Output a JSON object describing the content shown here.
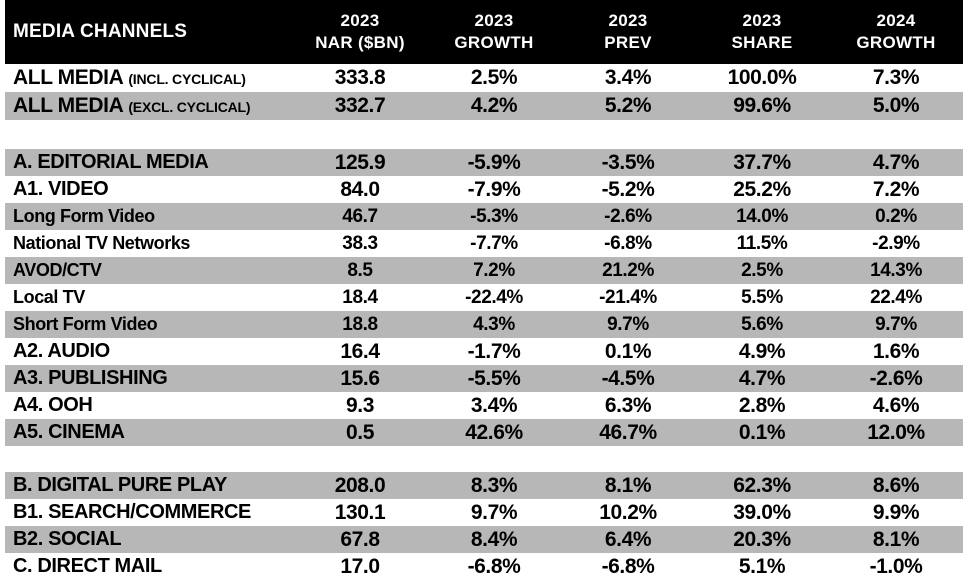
{
  "colors": {
    "header_bg": "#000000",
    "header_text": "#ffffff",
    "row_gray": "#b7b7b7",
    "row_white": "#ffffff",
    "text": "#000000"
  },
  "header": {
    "label": "MEDIA CHANNELS",
    "cols": [
      {
        "l1": "2023",
        "l2": "NAR ($BN)"
      },
      {
        "l1": "2023",
        "l2": "GROWTH"
      },
      {
        "l1": "2023",
        "l2": "PREV"
      },
      {
        "l1": "2023",
        "l2": "SHARE"
      },
      {
        "l1": "2024",
        "l2": "GROWTH"
      }
    ]
  },
  "chart_data": {
    "type": "table",
    "title": "MEDIA CHANNELS",
    "columns": [
      "MEDIA CHANNELS",
      "2023 NAR ($BN)",
      "2023 GROWTH",
      "2023 PREV",
      "2023 SHARE",
      "2024 GROWTH"
    ],
    "rows": [
      {
        "channel": "ALL MEDIA",
        "qualifier": "(INCL. CYCLICAL)",
        "nar_2023": "333.8",
        "growth_2023": "2.5%",
        "prev_2023": "3.4%",
        "share_2023": "100.0%",
        "growth_2024": "7.3%",
        "tier": "major",
        "shade": "white"
      },
      {
        "channel": "ALL MEDIA",
        "qualifier": "(EXCL. CYCLICAL)",
        "nar_2023": "332.7",
        "growth_2023": "4.2%",
        "prev_2023": "5.2%",
        "share_2023": "99.6%",
        "growth_2024": "5.0%",
        "tier": "major",
        "shade": "gray"
      },
      {
        "type": "spacer",
        "size": "lg"
      },
      {
        "channel": "A. EDITORIAL MEDIA",
        "nar_2023": "125.9",
        "growth_2023": "-5.9%",
        "prev_2023": "-3.5%",
        "share_2023": "37.7%",
        "growth_2024": "4.7%",
        "tier": "section",
        "shade": "gray"
      },
      {
        "channel": "A1. VIDEO",
        "nar_2023": "84.0",
        "growth_2023": "-7.9%",
        "prev_2023": "-5.2%",
        "share_2023": "25.2%",
        "growth_2024": "7.2%",
        "tier": "section",
        "shade": "white"
      },
      {
        "channel": "Long Form Video",
        "nar_2023": "46.7",
        "growth_2023": "-5.3%",
        "prev_2023": "-2.6%",
        "share_2023": "14.0%",
        "growth_2024": "0.2%",
        "tier": "sub",
        "shade": "gray"
      },
      {
        "channel": "National TV Networks",
        "nar_2023": "38.3",
        "growth_2023": "-7.7%",
        "prev_2023": "-6.8%",
        "share_2023": "11.5%",
        "growth_2024": "-2.9%",
        "tier": "sub",
        "shade": "white"
      },
      {
        "channel": "AVOD/CTV",
        "nar_2023": "8.5",
        "growth_2023": "7.2%",
        "prev_2023": "21.2%",
        "share_2023": "2.5%",
        "growth_2024": "14.3%",
        "tier": "sub",
        "shade": "gray"
      },
      {
        "channel": "Local TV",
        "nar_2023": "18.4",
        "growth_2023": "-22.4%",
        "prev_2023": "-21.4%",
        "share_2023": "5.5%",
        "growth_2024": "22.4%",
        "tier": "sub",
        "shade": "white"
      },
      {
        "channel": "Short Form Video",
        "nar_2023": "18.8",
        "growth_2023": "4.3%",
        "prev_2023": "9.7%",
        "share_2023": "5.6%",
        "growth_2024": "9.7%",
        "tier": "sub",
        "shade": "gray"
      },
      {
        "channel": "A2. AUDIO",
        "nar_2023": "16.4",
        "growth_2023": "-1.7%",
        "prev_2023": "0.1%",
        "share_2023": "4.9%",
        "growth_2024": "1.6%",
        "tier": "section",
        "shade": "white"
      },
      {
        "channel": "A3. PUBLISHING",
        "nar_2023": "15.6",
        "growth_2023": "-5.5%",
        "prev_2023": "-4.5%",
        "share_2023": "4.7%",
        "growth_2024": "-2.6%",
        "tier": "section",
        "shade": "gray"
      },
      {
        "channel": "A4. OOH",
        "nar_2023": "9.3",
        "growth_2023": "3.4%",
        "prev_2023": "6.3%",
        "share_2023": "2.8%",
        "growth_2024": "4.6%",
        "tier": "section",
        "shade": "white"
      },
      {
        "channel": "A5. CINEMA",
        "nar_2023": "0.5",
        "growth_2023": "42.6%",
        "prev_2023": "46.7%",
        "share_2023": "0.1%",
        "growth_2024": "12.0%",
        "tier": "section",
        "shade": "gray"
      },
      {
        "type": "spacer",
        "size": "sm"
      },
      {
        "channel": "B. DIGITAL PURE PLAY",
        "nar_2023": "208.0",
        "growth_2023": "8.3%",
        "prev_2023": "8.1%",
        "share_2023": "62.3%",
        "growth_2024": "8.6%",
        "tier": "section",
        "shade": "gray"
      },
      {
        "channel": "B1. SEARCH/COMMERCE",
        "nar_2023": "130.1",
        "growth_2023": "9.7%",
        "prev_2023": "10.2%",
        "share_2023": "39.0%",
        "growth_2024": "9.9%",
        "tier": "section",
        "shade": "white"
      },
      {
        "channel": "B2. SOCIAL",
        "nar_2023": "67.8",
        "growth_2023": "8.4%",
        "prev_2023": "6.4%",
        "share_2023": "20.3%",
        "growth_2024": "8.1%",
        "tier": "section",
        "shade": "gray"
      },
      {
        "channel": "C. DIRECT MAIL",
        "nar_2023": "17.0",
        "growth_2023": "-6.8%",
        "prev_2023": "-6.8%",
        "share_2023": "5.1%",
        "growth_2024": "-1.0%",
        "tier": "section",
        "shade": "white"
      }
    ]
  }
}
